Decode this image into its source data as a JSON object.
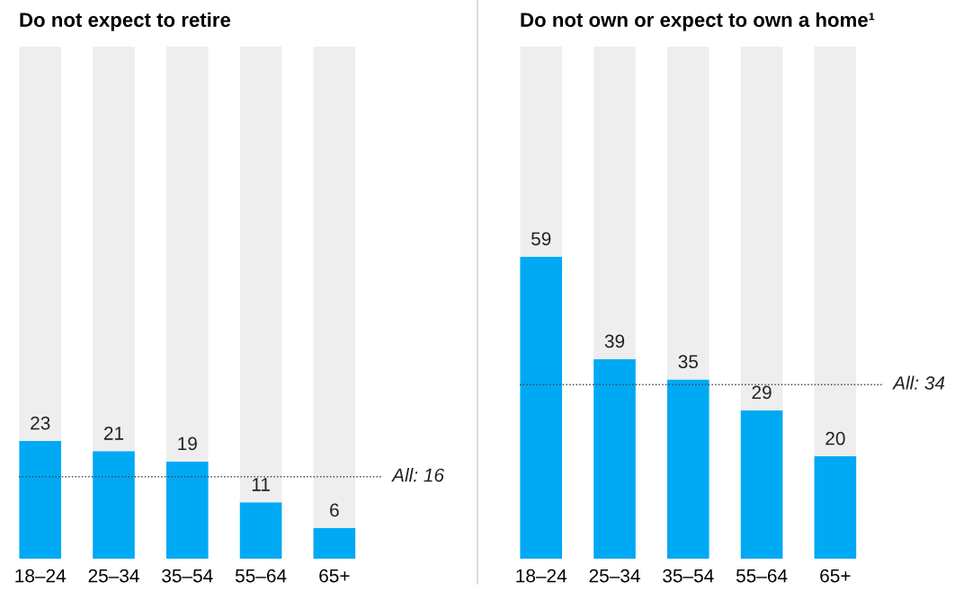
{
  "chart_data": [
    {
      "type": "bar",
      "title": "Do not expect to retire",
      "categories": [
        "18–24",
        "25–34",
        "35–54",
        "55–64",
        "65+"
      ],
      "stacked": true,
      "ylim": [
        0,
        100
      ],
      "tick_labels": "x",
      "series": [
        {
          "color": "#00a9f4",
          "values": [
            23,
            21,
            19,
            11,
            6
          ],
          "value_labels": [
            "23",
            "21",
            "19",
            "11",
            "6"
          ]
        },
        {
          "color": "#eeeeee",
          "values": [
            77,
            79,
            81,
            89,
            94
          ]
        }
      ],
      "ref_lines": [
        {
          "axis": "y",
          "value": 16,
          "label": "All: 16",
          "color": "#444444",
          "line_style": "dotted"
        }
      ]
    },
    {
      "type": "bar",
      "title": "Do not own or expect to own a home¹",
      "categories": [
        "18–24",
        "25–34",
        "35–54",
        "55–64",
        "65+"
      ],
      "stacked": true,
      "ylim": [
        0,
        100
      ],
      "tick_labels": "x",
      "series": [
        {
          "color": "#00a9f4",
          "values": [
            59,
            39,
            35,
            29,
            20
          ],
          "value_labels": [
            "59",
            "39",
            "35",
            "29",
            "20"
          ]
        },
        {
          "color": "#eeeeee",
          "values": [
            41,
            61,
            65,
            71,
            80
          ]
        }
      ],
      "ref_lines": [
        {
          "axis": "y",
          "value": 34,
          "label": "All: 34",
          "color": "#444444",
          "line_style": "dotted"
        }
      ]
    }
  ]
}
